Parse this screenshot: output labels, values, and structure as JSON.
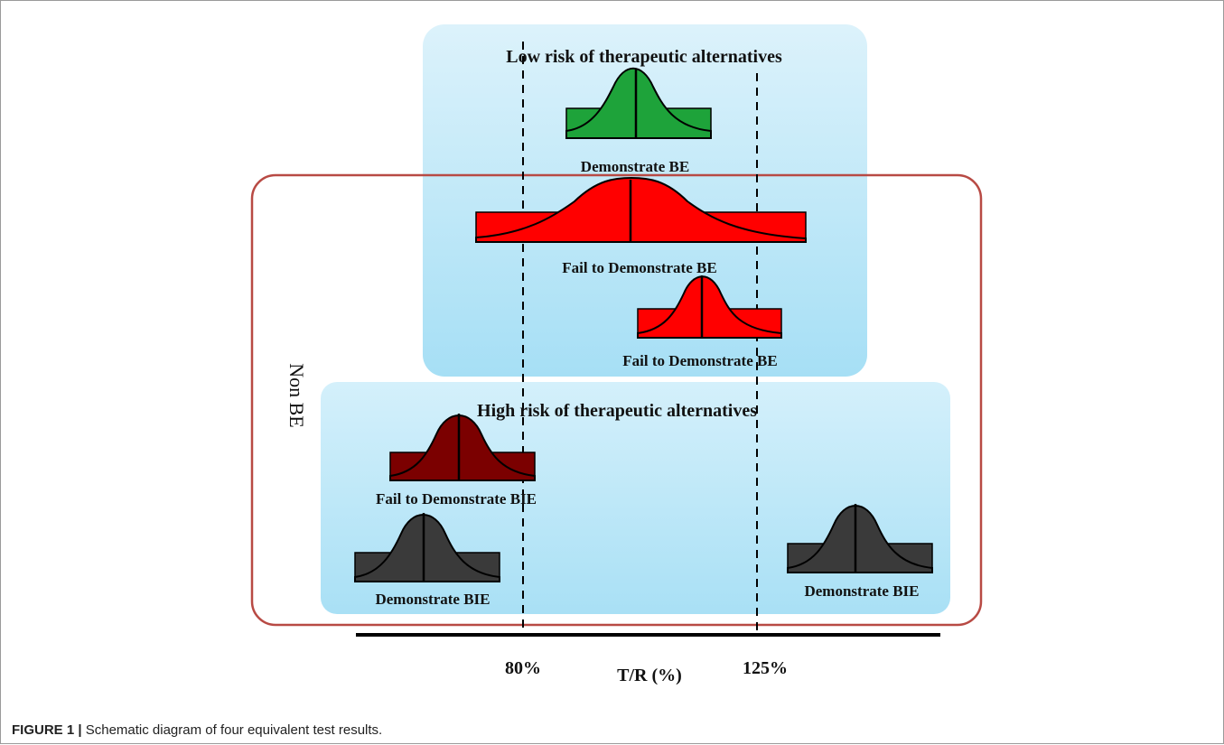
{
  "panels": {
    "low_risk": {
      "title": "Low risk of therapeutic alternatives"
    },
    "high_risk": {
      "title": "High risk of therapeutic alternatives"
    }
  },
  "non_be_label": "Non BE",
  "axis": {
    "lower_limit": "80%",
    "upper_limit": "125%",
    "title": "T/R (%)"
  },
  "results": [
    {
      "label": "Demonstrate BE",
      "color": "#1ea33a"
    },
    {
      "label": "Fail to Demonstrate BE",
      "color": "#ff0000"
    },
    {
      "label": "Fail to Demonstrate BE",
      "color": "#ff0000"
    },
    {
      "label": "Fail to Demonstrate BIE",
      "color": "#7b0000"
    },
    {
      "label": "Demonstrate BIE",
      "color": "#3a3a3a"
    },
    {
      "label": "Demonstrate BIE",
      "color": "#3a3a3a"
    }
  ],
  "caption": {
    "label": "FIGURE 1 |",
    "text": "Schematic diagram of four equivalent test results."
  },
  "colors": {
    "panel_gradient_top": "#d8f1fb",
    "panel_gradient_bottom": "#9fdcf4",
    "non_be_border": "#b84a44"
  }
}
